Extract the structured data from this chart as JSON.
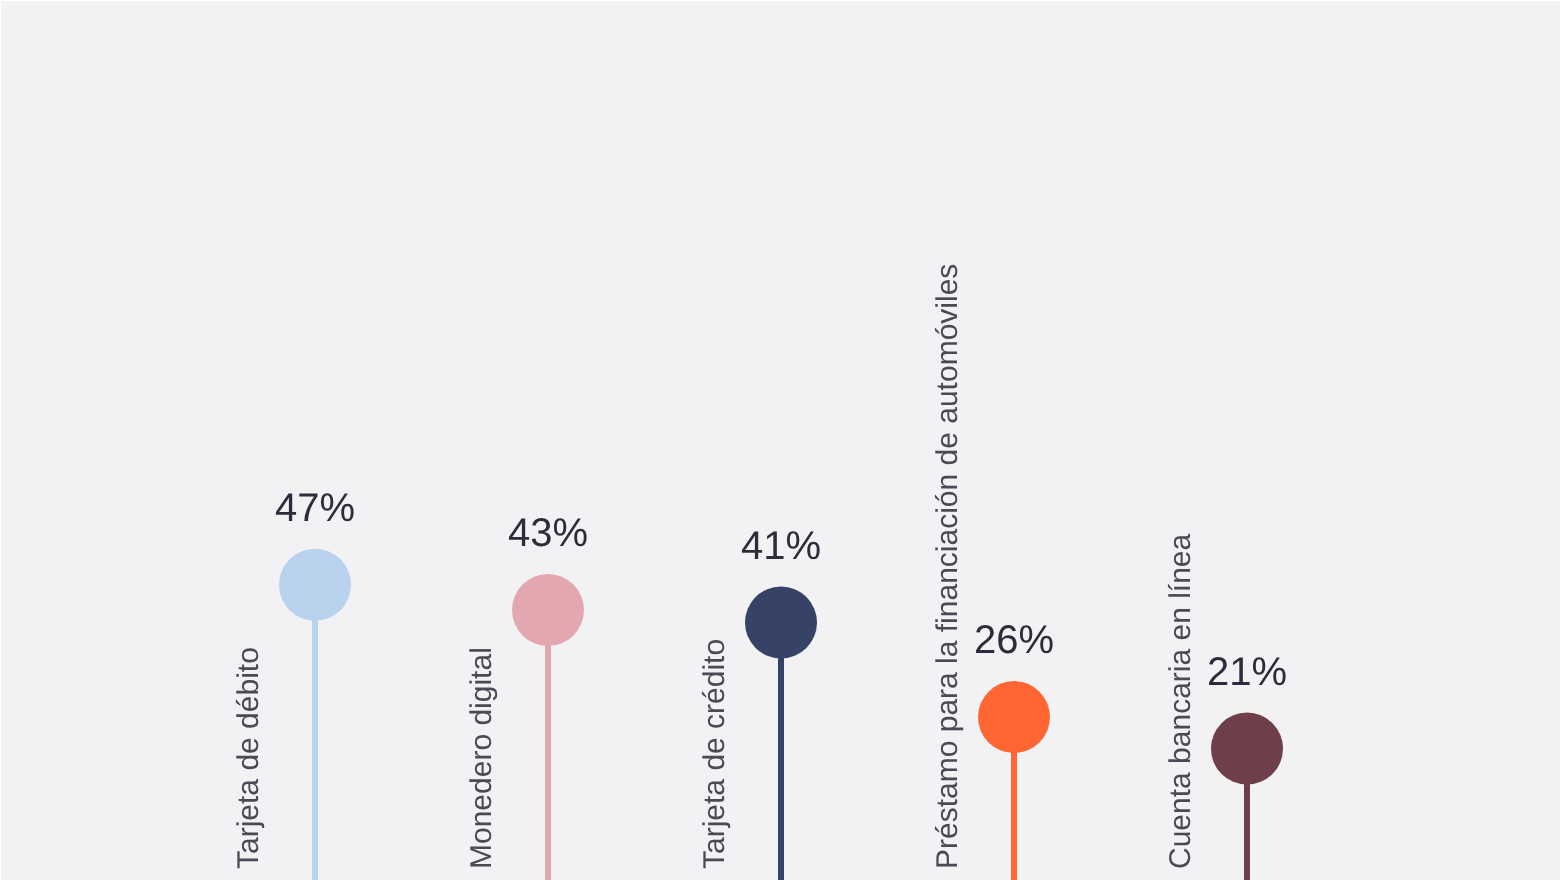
{
  "chart_data": {
    "type": "lollipop",
    "categories": [
      "Tarjeta de débito",
      "Monedero digital",
      "Tarjeta de crédito",
      "Préstamo para la financiación de automóviles",
      "Cuenta bancaria en línea"
    ],
    "values": [
      47,
      43,
      41,
      26,
      21
    ],
    "value_labels": [
      "47%",
      "43%",
      "41%",
      "26%",
      "21%"
    ],
    "colors": [
      "#b9d3ee",
      "#e3a7b0",
      "#374366",
      "#ff6633",
      "#6e3e4a"
    ],
    "tick_labels": "x"
  }
}
